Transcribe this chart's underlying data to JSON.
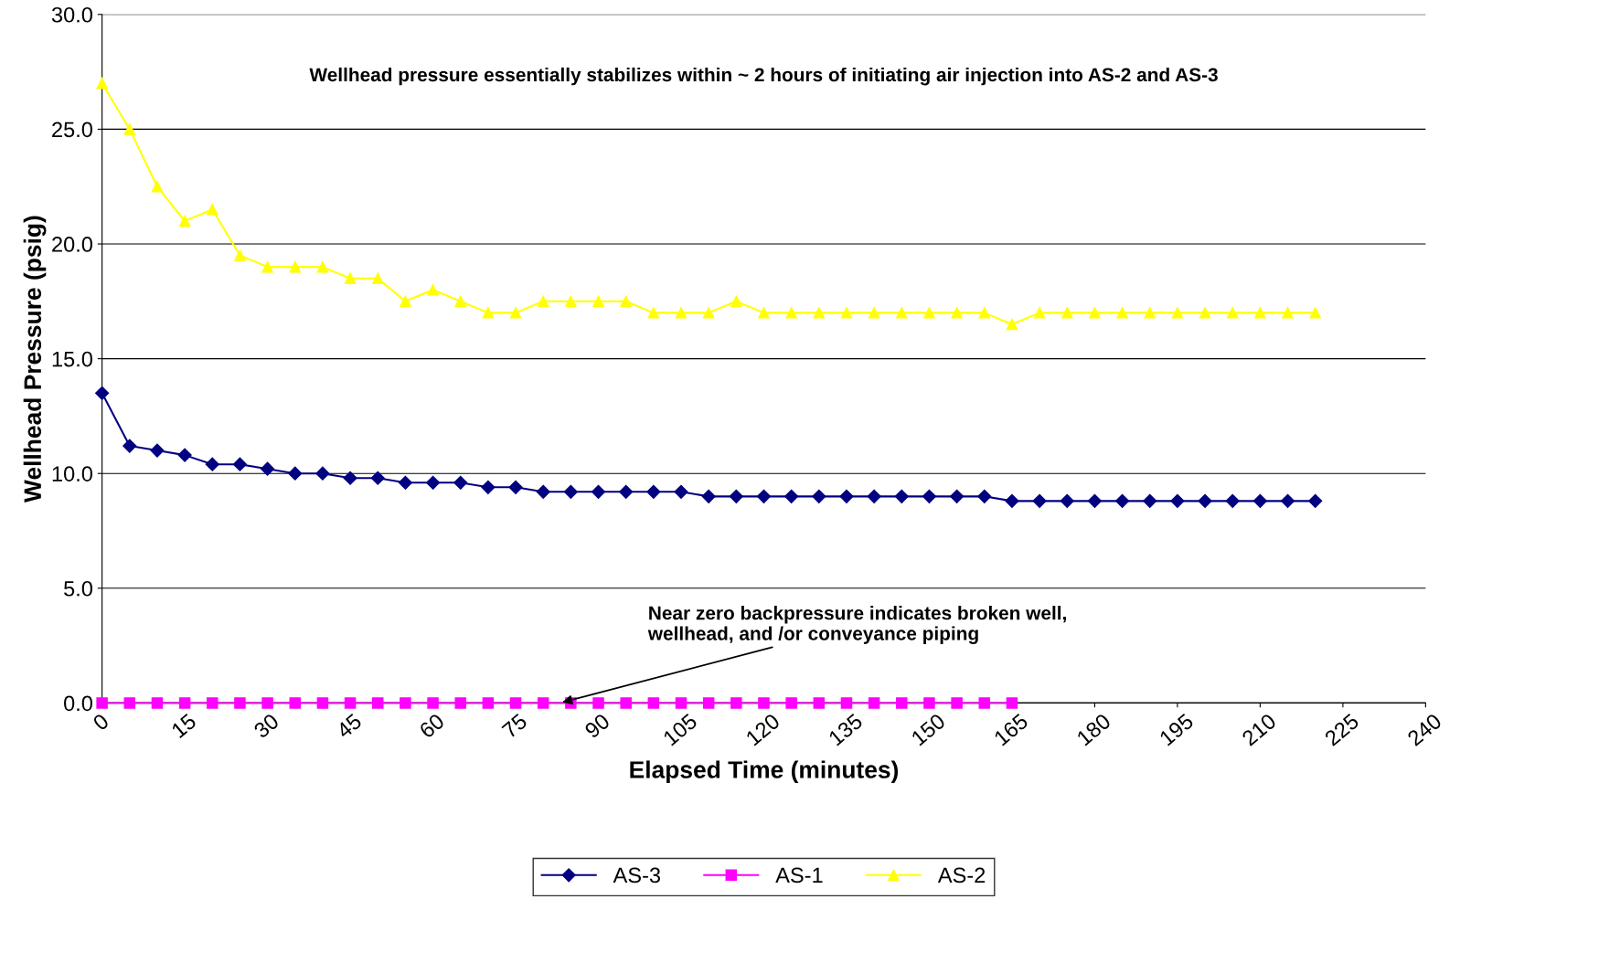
{
  "chart_data": {
    "type": "line",
    "xlabel": "Elapsed Time (minutes)",
    "ylabel": "Wellhead Pressure (psig)",
    "series": [
      {
        "name": "AS-3",
        "color": "#000080",
        "marker": "diamond",
        "x": [
          0,
          5,
          10,
          15,
          20,
          25,
          30,
          35,
          40,
          45,
          50,
          55,
          60,
          65,
          70,
          75,
          80,
          85,
          90,
          95,
          100,
          105,
          110,
          115,
          120,
          125,
          130,
          135,
          140,
          145,
          150,
          155,
          160,
          165,
          170,
          175,
          180,
          185,
          190,
          195,
          200,
          205,
          210,
          215,
          220
        ],
        "values": [
          13.5,
          11.2,
          11.0,
          10.8,
          10.4,
          10.4,
          10.2,
          10.0,
          10.0,
          9.8,
          9.8,
          9.6,
          9.6,
          9.6,
          9.4,
          9.4,
          9.2,
          9.2,
          9.2,
          9.2,
          9.2,
          9.2,
          9.0,
          9.0,
          9.0,
          9.0,
          9.0,
          9.0,
          9.0,
          9.0,
          9.0,
          9.0,
          9.0,
          8.8,
          8.8,
          8.8,
          8.8,
          8.8,
          8.8,
          8.8,
          8.8,
          8.8,
          8.8,
          8.8,
          8.8
        ]
      },
      {
        "name": "AS-1",
        "color": "#ff00ff",
        "marker": "square",
        "x": [
          0,
          5,
          10,
          15,
          20,
          25,
          30,
          35,
          40,
          45,
          50,
          55,
          60,
          65,
          70,
          75,
          80,
          85,
          90,
          95,
          100,
          105,
          110,
          115,
          120,
          125,
          130,
          135,
          140,
          145,
          150,
          155,
          160,
          165
        ],
        "values": [
          0,
          0,
          0,
          0,
          0,
          0,
          0,
          0,
          0,
          0,
          0,
          0,
          0,
          0,
          0,
          0,
          0,
          0,
          0,
          0,
          0,
          0,
          0,
          0,
          0,
          0,
          0,
          0,
          0,
          0,
          0,
          0,
          0,
          0
        ]
      },
      {
        "name": "AS-2",
        "color": "#ffff00",
        "marker": "triangle",
        "x": [
          0,
          5,
          10,
          15,
          20,
          25,
          30,
          35,
          40,
          45,
          50,
          55,
          60,
          65,
          70,
          75,
          80,
          85,
          90,
          95,
          100,
          105,
          110,
          115,
          120,
          125,
          130,
          135,
          140,
          145,
          150,
          155,
          160,
          165,
          170,
          175,
          180,
          185,
          190,
          195,
          200,
          205,
          210,
          215,
          220
        ],
        "values": [
          27,
          25,
          22.5,
          21,
          21.5,
          19.5,
          19,
          19,
          19,
          18.5,
          18.5,
          17.5,
          18,
          17.5,
          17,
          17,
          17.5,
          17.5,
          17.5,
          17.5,
          17,
          17,
          17,
          17.5,
          17,
          17,
          17,
          17,
          17,
          17,
          17,
          17,
          17,
          16.5,
          17,
          17,
          17,
          17,
          17,
          17,
          17,
          17,
          17,
          17,
          17
        ]
      }
    ],
    "xlim": [
      0,
      240
    ],
    "xticks": [
      0,
      15,
      30,
      45,
      60,
      75,
      90,
      105,
      120,
      135,
      150,
      165,
      180,
      195,
      210,
      225,
      240
    ],
    "ylim": [
      0,
      30
    ],
    "yticks": [
      {
        "value": 0,
        "label": "0.0"
      },
      {
        "value": 5,
        "label": "5.0"
      },
      {
        "value": 10,
        "label": "10.0"
      },
      {
        "value": 15,
        "label": "15.0"
      },
      {
        "value": 20,
        "label": "20.0"
      },
      {
        "value": 25,
        "label": "25.0"
      },
      {
        "value": 30,
        "label": "30.0"
      }
    ],
    "grid": "y",
    "legend": "bottom",
    "line_style": "solid",
    "annotations": [
      "Wellhead pressure essentially stabilizes within ~ 2 hours of initiating air injection into AS-2 and AS-3",
      {
        "text": "Near zero backpressure indicates broken well,\nwellhead, and /or conveyance piping",
        "x": 83,
        "y": 0
      }
    ]
  }
}
